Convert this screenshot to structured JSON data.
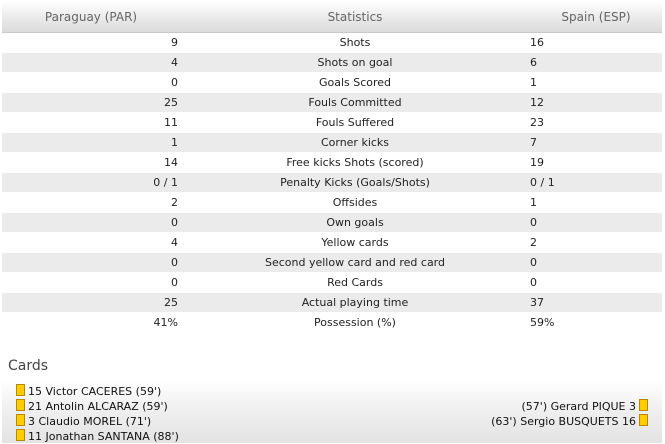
{
  "header": {
    "left": "Paraguay (PAR)",
    "middle": "Statistics",
    "right": "Spain (ESP)"
  },
  "stats": [
    {
      "left": "9",
      "label": "Shots",
      "right": "16"
    },
    {
      "left": "4",
      "label": "Shots on goal",
      "right": "6"
    },
    {
      "left": "0",
      "label": "Goals Scored",
      "right": "1"
    },
    {
      "left": "25",
      "label": "Fouls Committed",
      "right": "12"
    },
    {
      "left": "11",
      "label": "Fouls Suffered",
      "right": "23"
    },
    {
      "left": "1",
      "label": "Corner kicks",
      "right": "7"
    },
    {
      "left": "14",
      "label": "Free kicks Shots (scored)",
      "right": "19"
    },
    {
      "left": "0 / 1",
      "label": "Penalty Kicks (Goals/Shots)",
      "right": "0 / 1"
    },
    {
      "left": "2",
      "label": "Offsides",
      "right": "1"
    },
    {
      "left": "0",
      "label": "Own goals",
      "right": "0"
    },
    {
      "left": "4",
      "label": "Yellow cards",
      "right": "2"
    },
    {
      "left": "0",
      "label": "Second yellow card and red card",
      "right": "0"
    },
    {
      "left": "0",
      "label": "Red Cards",
      "right": "0"
    },
    {
      "left": "25",
      "label": "Actual playing time",
      "right": "37"
    },
    {
      "left": "41%",
      "label": "Possession (%)",
      "right": "59%"
    }
  ],
  "cards": {
    "title": "Cards",
    "left": [
      "15 Victor CACERES (59')",
      "21 Antolin ALCARAZ (59')",
      "3 Claudio MOREL (71')",
      "11 Jonathan SANTANA (88')"
    ],
    "right": [
      "(57') Gerard PIQUE 3",
      "(63') Sergio BUSQUETS 16"
    ],
    "card_color": "#ffcc00"
  }
}
